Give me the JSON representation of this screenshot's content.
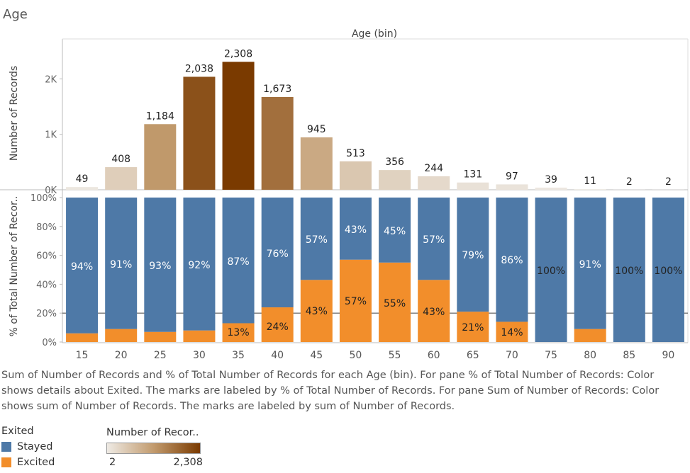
{
  "sheet_title": "Age",
  "caption": "Sum of Number of Records and % of Total Number of Records for each Age (bin).  For pane % of Total Number of Records:  Color shows details about Exited.  The marks are labeled by % of Total Number of Records.  For pane Sum of Number of Records:  Color shows sum of Number of Records.  The marks are labeled by sum of Number of Records.",
  "legend_exited": {
    "title": "Exited",
    "items": [
      {
        "label": "Stayed",
        "color": "#4e79a7"
      },
      {
        "label": "Excited",
        "color": "#f28e2b"
      }
    ]
  },
  "legend_count": {
    "title": "Number of Recor..",
    "min_label": "2",
    "max_label": "2,308",
    "color_low": "#eeeae4",
    "color_mid": "#c29b6e",
    "color_high": "#7a3a00"
  },
  "chart_data": [
    {
      "type": "bar",
      "title": "Age (bin)",
      "xlabel": "",
      "ylabel": "Number of Records",
      "ylim": [
        0,
        2350
      ],
      "yticks": [
        {
          "value": 0,
          "label": "0K"
        },
        {
          "value": 1000,
          "label": "1K"
        },
        {
          "value": 2000,
          "label": "2K"
        }
      ],
      "categories": [
        "15",
        "20",
        "25",
        "30",
        "35",
        "40",
        "45",
        "50",
        "55",
        "60",
        "65",
        "70",
        "75",
        "80",
        "85",
        "90"
      ],
      "values": [
        49,
        408,
        1184,
        2038,
        2308,
        1673,
        945,
        513,
        356,
        244,
        131,
        97,
        39,
        11,
        2,
        2
      ],
      "labels": [
        "49",
        "408",
        "1,184",
        "2,038",
        "2,308",
        "1,673",
        "945",
        "513",
        "356",
        "244",
        "131",
        "97",
        "39",
        "11",
        "2",
        "2"
      ],
      "color_scale": "sum of Number of Records"
    },
    {
      "type": "bar",
      "stacked": true,
      "xlabel": "",
      "ylabel": "% of Total Number of Recor..",
      "ylim": [
        0,
        100
      ],
      "yticks": [
        {
          "value": 0,
          "label": "0%"
        },
        {
          "value": 20,
          "label": "20%"
        },
        {
          "value": 40,
          "label": "40%"
        },
        {
          "value": 60,
          "label": "60%"
        },
        {
          "value": 80,
          "label": "80%"
        },
        {
          "value": 100,
          "label": "100%"
        }
      ],
      "reference_line": 20,
      "categories": [
        "15",
        "20",
        "25",
        "30",
        "35",
        "40",
        "45",
        "50",
        "55",
        "60",
        "65",
        "70",
        "75",
        "80",
        "85",
        "90"
      ],
      "series": [
        {
          "name": "Stayed",
          "color": "#4e79a7",
          "values": [
            94,
            91,
            93,
            92,
            87,
            76,
            57,
            43,
            45,
            57,
            79,
            86,
            100,
            91,
            100,
            100
          ],
          "labels": [
            "94%",
            "91%",
            "93%",
            "92%",
            "87%",
            "76%",
            "57%",
            "43%",
            "45%",
            "57%",
            "79%",
            "86%",
            "100%",
            "91%",
            "100%",
            "100%"
          ]
        },
        {
          "name": "Excited",
          "color": "#f28e2b",
          "values": [
            6,
            9,
            7,
            8,
            13,
            24,
            43,
            57,
            55,
            43,
            21,
            14,
            0,
            9,
            0,
            0
          ],
          "labels": [
            "",
            "",
            "",
            "",
            "13%",
            "24%",
            "43%",
            "57%",
            "55%",
            "43%",
            "21%",
            "14%",
            "",
            "",
            "",
            ""
          ]
        }
      ]
    }
  ]
}
